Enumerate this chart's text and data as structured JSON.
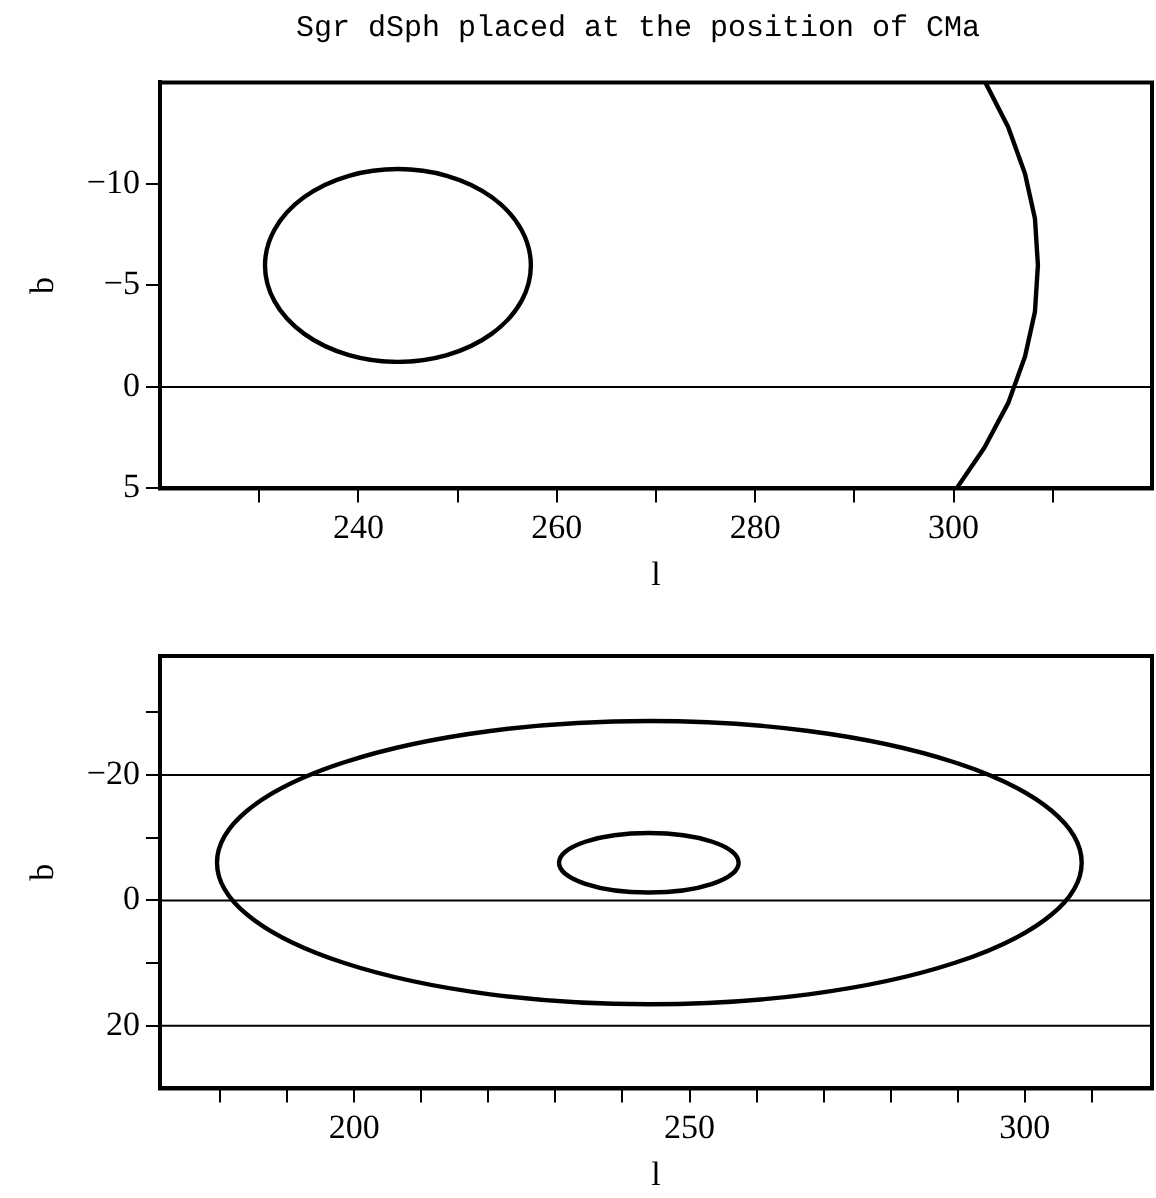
{
  "chart_data": [
    {
      "type": "line",
      "title": "Sgr dSph placed at the position of CMa",
      "xlabel": "l",
      "ylabel": "b",
      "xlim": [
        220,
        320
      ],
      "ylim": [
        5,
        -15
      ],
      "xticks": [
        {
          "value": 230,
          "label": null
        },
        240,
        {
          "value": 250,
          "label": null
        },
        260,
        {
          "value": 270,
          "label": null
        },
        280,
        {
          "value": 290,
          "label": null
        },
        300,
        {
          "value": 310,
          "label": null
        }
      ],
      "yticks": [
        {
          "value": -10,
          "label": "−10"
        },
        {
          "value": -5,
          "label": "−5"
        },
        0,
        5
      ],
      "ref_lines": [
        {
          "axis": "y",
          "value": 0,
          "color": "#000000"
        }
      ],
      "series": [
        {
          "color": "#000000",
          "x": [
            303.2,
            305.5,
            307.2,
            308.2,
            308.5,
            308.2,
            307.2,
            305.5,
            303.1,
            300.3
          ],
          "values": [
            -15.0,
            -12.8,
            -10.5,
            -8.3,
            -6.0,
            -3.7,
            -1.5,
            0.8,
            3.0,
            5.0
          ]
        }
      ]
    },
    {
      "type": "line",
      "xlabel": "l",
      "ylabel": "b",
      "xlim": [
        171,
        319
      ],
      "ylim": [
        30,
        -39
      ],
      "xticks": [
        {
          "value": 180,
          "label": null
        },
        {
          "value": 190,
          "label": null
        },
        200,
        {
          "value": 210,
          "label": null
        },
        {
          "value": 220,
          "label": null
        },
        {
          "value": 230,
          "label": null
        },
        {
          "value": 240,
          "label": null
        },
        250,
        {
          "value": 260,
          "label": null
        },
        {
          "value": 270,
          "label": null
        },
        {
          "value": 280,
          "label": null
        },
        {
          "value": 290,
          "label": null
        },
        300,
        {
          "value": 310,
          "label": null
        }
      ],
      "yticks": [
        {
          "value": -30,
          "label": null
        },
        {
          "value": -20,
          "label": "−20"
        },
        {
          "value": -10,
          "label": null
        },
        0,
        {
          "value": 10,
          "label": null
        },
        20
      ],
      "ref_lines": [
        {
          "axis": "y",
          "value": -20,
          "color": "#000000"
        },
        {
          "axis": "y",
          "value": 0,
          "color": "#000000"
        },
        {
          "axis": "y",
          "value": 20,
          "color": "#000000"
        }
      ]
    }
  ]
}
